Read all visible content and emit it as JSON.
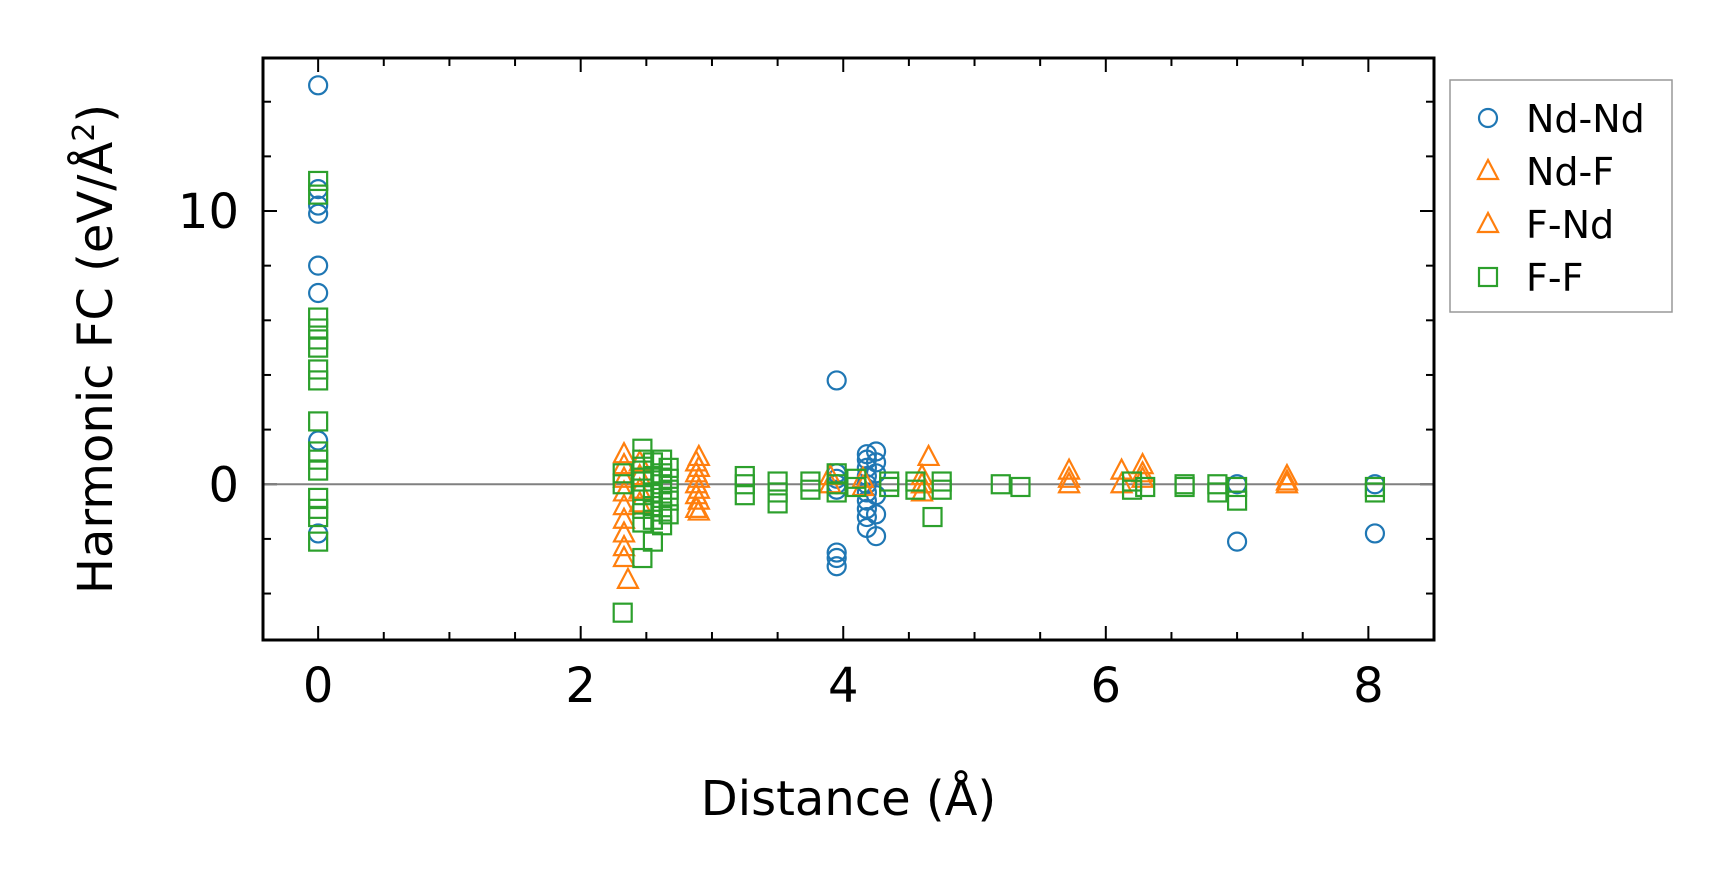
{
  "chart_data": {
    "type": "scatter",
    "title": "",
    "xlabel": "Distance (Å)",
    "ylabel_main": "Harmonic FC (eV/Å",
    "ylabel_sup": "2",
    "ylabel_close": ")",
    "xlim": [
      -0.42,
      8.5
    ],
    "ylim": [
      -5.7,
      15.6
    ],
    "xticks": [
      0,
      2,
      4,
      6,
      8
    ],
    "xtick_labels": [
      "0",
      "2",
      "4",
      "6",
      "8"
    ],
    "yticks": [
      0,
      10
    ],
    "ytick_labels": [
      "0",
      "10"
    ],
    "x_minor_step": 0.5,
    "y_minor_step": 2,
    "zero_line": true,
    "grid": false,
    "legend_position": "outside-right-top",
    "series": [
      {
        "name": "Nd-Nd",
        "marker": "circle",
        "color": "#1f77b4",
        "points": [
          [
            0,
            14.6
          ],
          [
            0,
            10.8
          ],
          [
            0,
            10.2
          ],
          [
            0,
            9.9
          ],
          [
            0,
            8.0
          ],
          [
            0,
            7.0
          ],
          [
            0,
            1.6
          ],
          [
            0,
            -1.8
          ],
          [
            3.95,
            3.8
          ],
          [
            3.95,
            0.4
          ],
          [
            3.95,
            0.2
          ],
          [
            3.95,
            0.0
          ],
          [
            3.95,
            -0.2
          ],
          [
            3.95,
            -2.5
          ],
          [
            3.95,
            -2.7
          ],
          [
            3.95,
            -3.0
          ],
          [
            4.18,
            1.1
          ],
          [
            4.18,
            0.9
          ],
          [
            4.18,
            0.6
          ],
          [
            4.18,
            0.3
          ],
          [
            4.18,
            0.0
          ],
          [
            4.18,
            -0.3
          ],
          [
            4.18,
            -0.6
          ],
          [
            4.18,
            -0.9
          ],
          [
            4.18,
            -1.2
          ],
          [
            4.18,
            -1.6
          ],
          [
            4.25,
            1.2
          ],
          [
            4.25,
            0.8
          ],
          [
            4.25,
            0.4
          ],
          [
            4.25,
            -0.4
          ],
          [
            4.25,
            -1.1
          ],
          [
            4.25,
            -1.9
          ],
          [
            7.0,
            0.0
          ],
          [
            7.0,
            -2.1
          ],
          [
            8.05,
            0.0
          ],
          [
            8.05,
            -1.8
          ]
        ]
      },
      {
        "name": "Nd-F",
        "marker": "triangle",
        "color": "#ff7f0e",
        "points": [
          [
            2.33,
            1.1
          ],
          [
            2.33,
            0.7
          ],
          [
            2.33,
            0.2
          ],
          [
            2.33,
            -0.3
          ],
          [
            2.33,
            -0.8
          ],
          [
            2.33,
            -1.3
          ],
          [
            2.33,
            -1.8
          ],
          [
            2.33,
            -2.3
          ],
          [
            2.33,
            -2.7
          ],
          [
            2.36,
            -3.5
          ],
          [
            2.9,
            1.0
          ],
          [
            2.9,
            0.6
          ],
          [
            2.9,
            0.2
          ],
          [
            2.9,
            -0.2
          ],
          [
            2.9,
            -0.6
          ],
          [
            2.9,
            -1.0
          ],
          [
            3.9,
            0.3
          ],
          [
            3.9,
            0.0
          ],
          [
            4.15,
            0.2
          ],
          [
            4.15,
            -0.1
          ],
          [
            4.6,
            0.0
          ],
          [
            4.6,
            -0.3
          ],
          [
            4.65,
            1.0
          ],
          [
            5.72,
            0.5
          ],
          [
            5.72,
            0.0
          ],
          [
            6.12,
            0.5
          ],
          [
            6.12,
            0.0
          ],
          [
            6.28,
            0.7
          ],
          [
            6.28,
            0.2
          ],
          [
            7.38,
            0.3
          ],
          [
            7.38,
            0.0
          ]
        ]
      },
      {
        "name": "F-Nd",
        "marker": "triangle",
        "color": "#ff7f0e",
        "points": [
          [
            2.45,
            0.8
          ],
          [
            2.45,
            0.3
          ],
          [
            2.45,
            -0.2
          ],
          [
            2.45,
            -0.7
          ],
          [
            2.88,
            0.8
          ],
          [
            2.88,
            0.4
          ],
          [
            2.88,
            0.0
          ],
          [
            2.88,
            -0.4
          ],
          [
            2.88,
            -0.9
          ],
          [
            4.6,
            0.3
          ],
          [
            4.6,
            0.0
          ],
          [
            5.72,
            0.2
          ],
          [
            6.28,
            0.4
          ],
          [
            7.38,
            0.1
          ]
        ]
      },
      {
        "name": "F-F",
        "marker": "square",
        "color": "#2ca02c",
        "points": [
          [
            0,
            11.1
          ],
          [
            0,
            10.6
          ],
          [
            0,
            6.1
          ],
          [
            0,
            5.7
          ],
          [
            0,
            5.3
          ],
          [
            0,
            5.0
          ],
          [
            0,
            4.2
          ],
          [
            0,
            3.8
          ],
          [
            0,
            2.3
          ],
          [
            0,
            1.2
          ],
          [
            0,
            0.9
          ],
          [
            0,
            0.5
          ],
          [
            0,
            -0.5
          ],
          [
            0,
            -0.9
          ],
          [
            0,
            -1.2
          ],
          [
            0,
            -2.1
          ],
          [
            2.32,
            0.4
          ],
          [
            2.32,
            0.0
          ],
          [
            2.32,
            -4.7
          ],
          [
            2.47,
            1.3
          ],
          [
            2.47,
            0.9
          ],
          [
            2.47,
            0.5
          ],
          [
            2.47,
            0.1
          ],
          [
            2.47,
            -0.4
          ],
          [
            2.47,
            -0.9
          ],
          [
            2.47,
            -1.4
          ],
          [
            2.47,
            -2.7
          ],
          [
            2.55,
            0.8
          ],
          [
            2.55,
            0.3
          ],
          [
            2.55,
            -0.3
          ],
          [
            2.55,
            -0.8
          ],
          [
            2.55,
            -1.3
          ],
          [
            2.55,
            -2.1
          ],
          [
            2.62,
            0.9
          ],
          [
            2.62,
            0.4
          ],
          [
            2.62,
            0.0
          ],
          [
            2.62,
            -0.5
          ],
          [
            2.62,
            -1.0
          ],
          [
            2.62,
            -1.5
          ],
          [
            2.67,
            0.6
          ],
          [
            2.67,
            0.2
          ],
          [
            2.67,
            -0.2
          ],
          [
            2.67,
            -0.6
          ],
          [
            2.67,
            -1.1
          ],
          [
            3.25,
            0.3
          ],
          [
            3.25,
            0.0
          ],
          [
            3.25,
            -0.4
          ],
          [
            3.5,
            0.1
          ],
          [
            3.5,
            -0.3
          ],
          [
            3.5,
            -0.7
          ],
          [
            3.75,
            0.1
          ],
          [
            3.75,
            -0.2
          ],
          [
            3.95,
            0.4
          ],
          [
            3.95,
            0.0
          ],
          [
            3.95,
            -0.3
          ],
          [
            4.1,
            0.2
          ],
          [
            4.1,
            -0.1
          ],
          [
            4.35,
            0.1
          ],
          [
            4.35,
            -0.1
          ],
          [
            4.55,
            0.1
          ],
          [
            4.55,
            -0.2
          ],
          [
            4.68,
            -1.2
          ],
          [
            4.75,
            0.1
          ],
          [
            4.75,
            -0.2
          ],
          [
            5.2,
            0.0
          ],
          [
            5.35,
            -0.1
          ],
          [
            6.2,
            0.1
          ],
          [
            6.2,
            -0.2
          ],
          [
            6.3,
            -0.1
          ],
          [
            6.6,
            0.0
          ],
          [
            6.6,
            -0.1
          ],
          [
            6.85,
            0.0
          ],
          [
            6.85,
            -0.3
          ],
          [
            7.0,
            -0.1
          ],
          [
            7.0,
            -0.6
          ],
          [
            8.05,
            -0.1
          ],
          [
            8.05,
            -0.3
          ]
        ]
      }
    ],
    "legend": [
      {
        "label": "Nd-Nd",
        "marker": "circle",
        "color": "#1f77b4"
      },
      {
        "label": "Nd-F",
        "marker": "triangle",
        "color": "#ff7f0e"
      },
      {
        "label": "F-Nd",
        "marker": "triangle",
        "color": "#ff7f0e"
      },
      {
        "label": "F-F",
        "marker": "square",
        "color": "#2ca02c"
      }
    ],
    "colors": {
      "axis": "#000000",
      "zero_line": "#808080",
      "legend_border": "#999999"
    }
  }
}
